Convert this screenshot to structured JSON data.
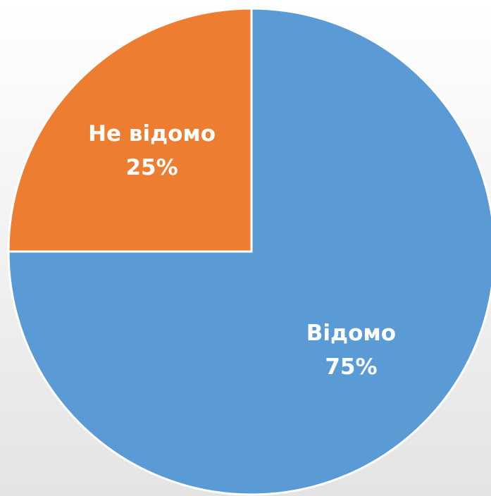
{
  "chart_data": {
    "type": "pie",
    "categories": [
      "Відомо",
      "Не відомо"
    ],
    "values": [
      75,
      25
    ],
    "value_labels": [
      "75%",
      "25%"
    ],
    "colors": [
      "#5b9bd5",
      "#ed7d31"
    ]
  }
}
